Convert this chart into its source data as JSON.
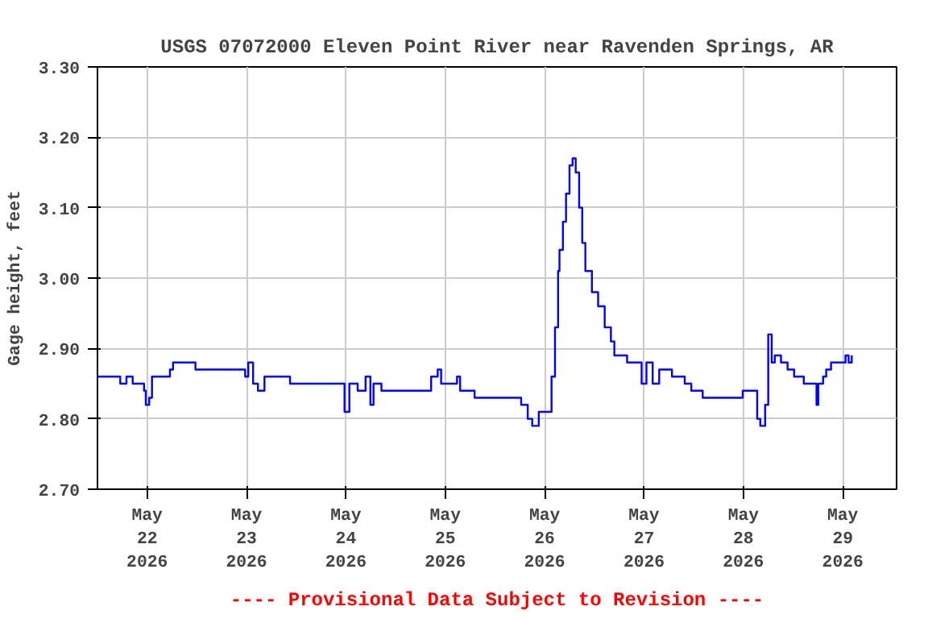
{
  "chart_data": {
    "type": "step",
    "title": "USGS 07072000 Eleven Point River near Ravenden Springs, AR",
    "ylabel": "Gage height, feet",
    "annotations": [
      "---- Provisional Data Subject to Revision ----"
    ],
    "xlim": [
      "2026-05-21T12:00",
      "2026-05-29T13:00"
    ],
    "xticks": [
      {
        "value": "2026-05-22",
        "label": "May\n22\n2026"
      },
      {
        "value": "2026-05-23",
        "label": "May\n23\n2026"
      },
      {
        "value": "2026-05-24",
        "label": "May\n24\n2026"
      },
      {
        "value": "2026-05-25",
        "label": "May\n25\n2026"
      },
      {
        "value": "2026-05-26",
        "label": "May\n26\n2026"
      },
      {
        "value": "2026-05-27",
        "label": "May\n27\n2026"
      },
      {
        "value": "2026-05-28",
        "label": "May\n28\n2026"
      },
      {
        "value": "2026-05-29",
        "label": "May\n29\n2026"
      }
    ],
    "ylim": [
      2.7,
      3.3
    ],
    "yticks": [
      {
        "value": 2.7,
        "label": "2.70"
      },
      {
        "value": 2.8,
        "label": "2.80"
      },
      {
        "value": 2.9,
        "label": "2.90"
      },
      {
        "value": 3.0,
        "label": "3.00"
      },
      {
        "value": 3.1,
        "label": "3.10"
      },
      {
        "value": 3.2,
        "label": "3.20"
      },
      {
        "value": 3.3,
        "label": "3.30"
      }
    ],
    "grid": true,
    "x": [
      "2026-05-21T12:00",
      "2026-05-21T16:30",
      "2026-05-21T17:30",
      "2026-05-21T19:00",
      "2026-05-21T20:30",
      "2026-05-21T22:30",
      "2026-05-21T23:15",
      "2026-05-21T23:40",
      "2026-05-22T00:30",
      "2026-05-22T01:10",
      "2026-05-22T04:15",
      "2026-05-22T05:30",
      "2026-05-22T06:15",
      "2026-05-22T11:15",
      "2026-05-22T11:40",
      "2026-05-22T22:55",
      "2026-05-22T23:40",
      "2026-05-23T00:25",
      "2026-05-23T01:35",
      "2026-05-23T02:45",
      "2026-05-23T04:20",
      "2026-05-23T06:15",
      "2026-05-23T10:30",
      "2026-05-23T22:55",
      "2026-05-23T23:40",
      "2026-05-24T00:50",
      "2026-05-24T02:50",
      "2026-05-24T04:45",
      "2026-05-24T05:55",
      "2026-05-24T06:40",
      "2026-05-24T08:35",
      "2026-05-24T19:05",
      "2026-05-24T20:35",
      "2026-05-24T22:10",
      "2026-05-24T23:00",
      "2026-05-25T01:20",
      "2026-05-25T02:50",
      "2026-05-25T03:35",
      "2026-05-25T05:55",
      "2026-05-25T07:05",
      "2026-05-25T16:50",
      "2026-05-25T18:20",
      "2026-05-25T19:55",
      "2026-05-25T21:00",
      "2026-05-25T22:35",
      "2026-05-26T00:30",
      "2026-05-26T01:40",
      "2026-05-26T02:30",
      "2026-05-26T03:15",
      "2026-05-26T03:35",
      "2026-05-26T04:25",
      "2026-05-26T05:10",
      "2026-05-26T06:00",
      "2026-05-26T06:45",
      "2026-05-26T07:30",
      "2026-05-26T08:20",
      "2026-05-26T09:05",
      "2026-05-26T09:50",
      "2026-05-26T11:25",
      "2026-05-26T12:55",
      "2026-05-26T14:30",
      "2026-05-26T16:00",
      "2026-05-26T16:50",
      "2026-05-26T18:00",
      "2026-05-26T19:55",
      "2026-05-26T22:15",
      "2026-05-26T23:25",
      "2026-05-27T00:35",
      "2026-05-27T02:05",
      "2026-05-27T03:40",
      "2026-05-27T05:15",
      "2026-05-27T06:45",
      "2026-05-27T08:20",
      "2026-05-27T09:50",
      "2026-05-27T11:25",
      "2026-05-27T13:45",
      "2026-05-27T14:10",
      "2026-05-27T23:05",
      "2026-05-27T23:50",
      "2026-05-28T02:10",
      "2026-05-28T03:20",
      "2026-05-28T04:05",
      "2026-05-28T05:15",
      "2026-05-28T06:00",
      "2026-05-28T06:50",
      "2026-05-28T07:35",
      "2026-05-28T09:05",
      "2026-05-28T10:40",
      "2026-05-28T12:15",
      "2026-05-28T14:10",
      "2026-05-28T14:35",
      "2026-05-28T17:20",
      "2026-05-28T17:40",
      "2026-05-28T18:05",
      "2026-05-28T19:15",
      "2026-05-28T20:00",
      "2026-05-28T21:10",
      "2026-05-28T23:55",
      "2026-05-29T00:40",
      "2026-05-29T01:25",
      "2026-05-29T02:10"
    ],
    "series": [
      {
        "color": "#0000ff",
        "values": [
          2.86,
          2.86,
          2.85,
          2.86,
          2.85,
          2.85,
          2.84,
          2.82,
          2.83,
          2.86,
          2.86,
          2.87,
          2.88,
          2.88,
          2.87,
          2.87,
          2.86,
          2.88,
          2.85,
          2.84,
          2.86,
          2.86,
          2.85,
          2.85,
          2.81,
          2.85,
          2.84,
          2.86,
          2.82,
          2.85,
          2.84,
          2.84,
          2.86,
          2.87,
          2.85,
          2.85,
          2.86,
          2.84,
          2.84,
          2.83,
          2.83,
          2.82,
          2.8,
          2.79,
          2.81,
          2.81,
          2.86,
          2.93,
          3.01,
          3.04,
          3.08,
          3.12,
          3.16,
          3.17,
          3.15,
          3.1,
          3.05,
          3.01,
          2.98,
          2.96,
          2.93,
          2.91,
          2.89,
          2.89,
          2.88,
          2.88,
          2.85,
          2.88,
          2.85,
          2.87,
          2.87,
          2.86,
          2.86,
          2.85,
          2.84,
          2.84,
          2.83,
          2.83,
          2.84,
          2.84,
          2.8,
          2.79,
          2.82,
          2.92,
          2.88,
          2.89,
          2.88,
          2.87,
          2.86,
          2.86,
          2.85,
          2.85,
          2.82,
          2.85,
          2.86,
          2.87,
          2.88,
          2.88,
          2.89,
          2.88,
          2.89
        ]
      }
    ]
  }
}
